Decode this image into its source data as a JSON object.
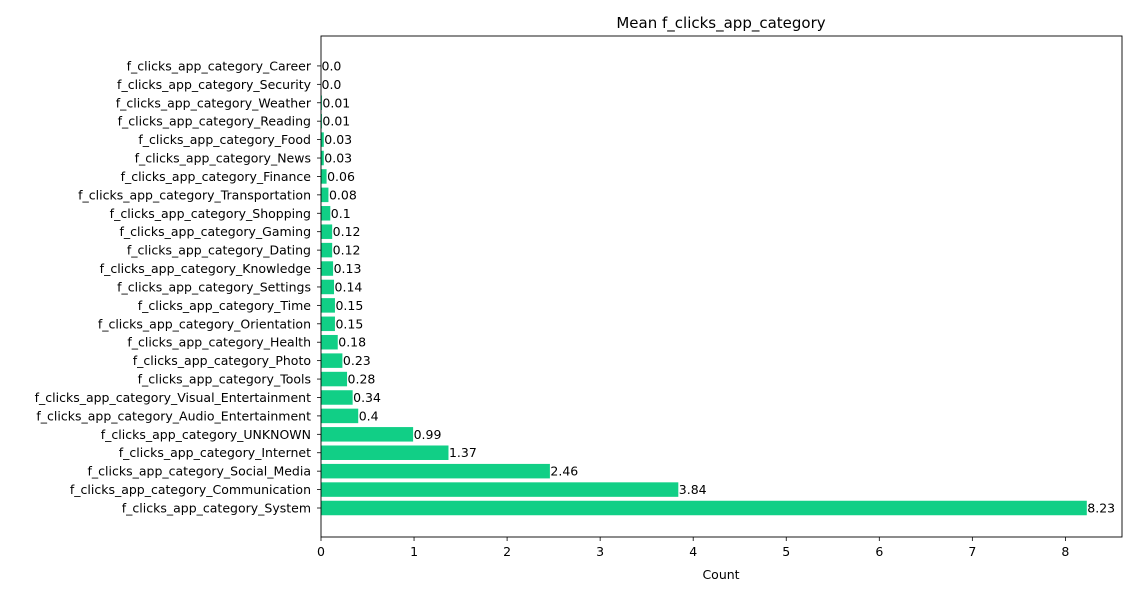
{
  "chart_data": {
    "type": "bar",
    "orientation": "horizontal",
    "title": "Mean f_clicks_app_category",
    "xlabel": "Count",
    "ylabel": "",
    "xlim": [
      0,
      8.65
    ],
    "xticks": [
      0,
      1,
      2,
      3,
      4,
      5,
      6,
      7,
      8
    ],
    "xtick_labels": [
      "0",
      "1",
      "2",
      "3",
      "4",
      "5",
      "6",
      "7",
      "8"
    ],
    "grid": false,
    "legend": "none",
    "bar_color": "#11cf86",
    "categories": [
      "f_clicks_app_category_System",
      "f_clicks_app_category_Communication",
      "f_clicks_app_category_Social_Media",
      "f_clicks_app_category_Internet",
      "f_clicks_app_category_UNKNOWN",
      "f_clicks_app_category_Audio_Entertainment",
      "f_clicks_app_category_Visual_Entertainment",
      "f_clicks_app_category_Tools",
      "f_clicks_app_category_Photo",
      "f_clicks_app_category_Health",
      "f_clicks_app_category_Orientation",
      "f_clicks_app_category_Time",
      "f_clicks_app_category_Settings",
      "f_clicks_app_category_Knowledge",
      "f_clicks_app_category_Dating",
      "f_clicks_app_category_Gaming",
      "f_clicks_app_category_Shopping",
      "f_clicks_app_category_Transportation",
      "f_clicks_app_category_Finance",
      "f_clicks_app_category_News",
      "f_clicks_app_category_Food",
      "f_clicks_app_category_Reading",
      "f_clicks_app_category_Weather",
      "f_clicks_app_category_Security",
      "f_clicks_app_category_Career"
    ],
    "values": [
      8.23,
      3.84,
      2.46,
      1.37,
      0.99,
      0.4,
      0.34,
      0.28,
      0.23,
      0.18,
      0.15,
      0.15,
      0.14,
      0.13,
      0.12,
      0.12,
      0.1,
      0.08,
      0.06,
      0.03,
      0.03,
      0.01,
      0.01,
      0.0,
      0.0
    ],
    "value_labels": [
      "8.23",
      "3.84",
      "2.46",
      "1.37",
      "0.99",
      "0.4",
      "0.34",
      "0.28",
      "0.23",
      "0.18",
      "0.15",
      "0.15",
      "0.14",
      "0.13",
      "0.12",
      "0.12",
      "0.1",
      "0.08",
      "0.06",
      "0.03",
      "0.03",
      "0.01",
      "0.01",
      "0.0",
      "0.0"
    ]
  }
}
